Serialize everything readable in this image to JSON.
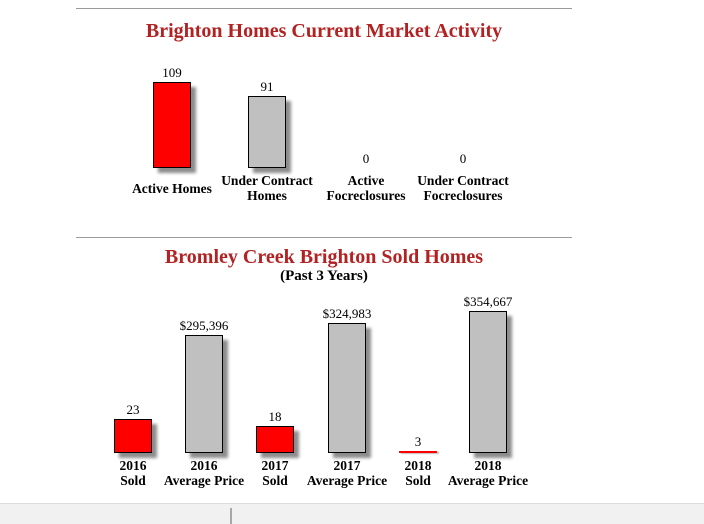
{
  "colors": {
    "title_red": "#B22222",
    "bar_red": "#FE0000",
    "bar_gray": "#C0C0C0",
    "bar_border": "#000000"
  },
  "chart_data": [
    {
      "type": "bar",
      "title": "Brighton Homes Current Market Activity",
      "subtitle": "",
      "categories": [
        "Active Homes",
        "Under Contract Homes",
        "Active Focreclosures",
        "Under Contract Focreclosures"
      ],
      "category_lines": [
        [
          "Active Homes"
        ],
        [
          "Under Contract",
          "Homes"
        ],
        [
          "Active",
          "Focreclosures"
        ],
        [
          "Under Contract",
          "Focreclosures"
        ]
      ],
      "values": [
        109,
        91,
        0,
        0
      ],
      "value_labels": [
        "109",
        "91",
        "0",
        "0"
      ],
      "bar_colors": [
        "#FE0000",
        "#C0C0C0",
        "#FE0000",
        "#C0C0C0"
      ],
      "series_scale": [
        "count",
        "count",
        "count",
        "count"
      ],
      "xlabel": "",
      "ylabel": "",
      "grid": false,
      "legend": "none",
      "axes_shown": false
    },
    {
      "type": "bar",
      "title": "Bromley Creek Brighton Sold Homes",
      "subtitle": "(Past 3 Years)",
      "categories": [
        "2016 Sold",
        "2016 Average Price",
        "2017 Sold",
        "2017 Average Price",
        "2018 Sold",
        "2018 Average Price"
      ],
      "category_lines": [
        [
          "2016",
          "Sold"
        ],
        [
          "2016",
          "Average Price"
        ],
        [
          "2017",
          "Sold"
        ],
        [
          "2017",
          "Average Price"
        ],
        [
          "2018",
          "Sold"
        ],
        [
          "2018",
          "Average Price"
        ]
      ],
      "values": [
        23,
        295396,
        18,
        324983,
        3,
        354667
      ],
      "value_labels": [
        "23",
        "$295,396",
        "18",
        "$324,983",
        "3",
        "$354,667"
      ],
      "bar_colors": [
        "#FE0000",
        "#C0C0C0",
        "#FE0000",
        "#C0C0C0",
        "#FE0000",
        "#C0C0C0"
      ],
      "series_scale": [
        "sold",
        "price",
        "sold",
        "price",
        "sold",
        "price"
      ],
      "note": "sold counts and average prices are drawn on separate visual scales",
      "xlabel": "",
      "ylabel": "",
      "grid": false,
      "legend": "none",
      "axes_shown": false
    }
  ]
}
